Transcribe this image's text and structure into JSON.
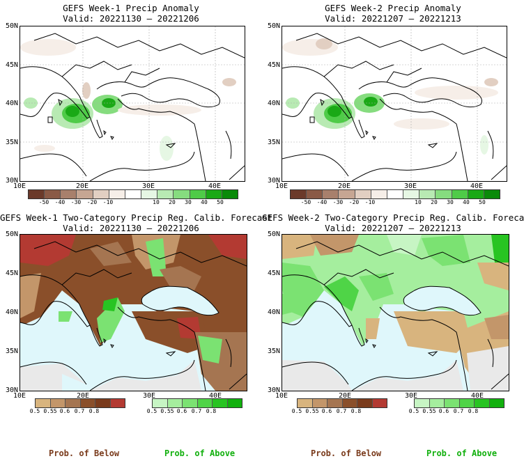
{
  "panels": [
    {
      "title": "GEFS Week-1 Precip Anomaly",
      "valid": "Valid: 20221130 – 20221206"
    },
    {
      "title": "GEFS Week-2 Precip Anomaly",
      "valid": "Valid: 20221207 – 20221213"
    },
    {
      "title": "GEFS Week-1 Two-Category Precip Reg. Calib. Forecast",
      "valid": "Valid: 20221130 – 20221206"
    },
    {
      "title": "GEFS Week-2 Two-Category Precip Reg. Calib. Forecast",
      "valid": "Valid: 20221207 – 20221213"
    }
  ],
  "axes": {
    "lat_labels": [
      "50N",
      "45N",
      "40N",
      "35N",
      "30N"
    ],
    "lon_labels": [
      "10E",
      "20E",
      "30E",
      "40E"
    ]
  },
  "anomaly_colorbar": {
    "ticks": [
      "-50",
      "-40",
      "-30",
      "-20",
      "-10",
      "10",
      "20",
      "30",
      "40",
      "50"
    ],
    "colors": [
      "#6b3a2a",
      "#8a5a46",
      "#a8806c",
      "#c6a693",
      "#e2cfc2",
      "#f6eee8",
      "#ffffff",
      "#e6f7e4",
      "#b8eab3",
      "#86dc7f",
      "#4fcb48",
      "#1aa916",
      "#0a8a0a"
    ]
  },
  "prob_below_colorbar": {
    "ticks": [
      "0.5",
      "0.55",
      "0.6",
      "0.7",
      "0.8"
    ],
    "colors": [
      "#d8b47e",
      "#c3966a",
      "#a57551",
      "#8a4f2a",
      "#7a3b1c",
      "#b33a32"
    ],
    "label": "Prob. of Below"
  },
  "prob_above_colorbar": {
    "ticks": [
      "0.5",
      "0.55",
      "0.6",
      "0.7",
      "0.8"
    ],
    "colors": [
      "#c7f5c4",
      "#a5ee9e",
      "#7be272",
      "#4fd447",
      "#28c422",
      "#12b00e"
    ],
    "label": "Prob. of Above"
  },
  "colors": {
    "sea": "#dff7fb",
    "neutral_land": "#e9e9e9",
    "below_prob": "#8a4f2a",
    "above_prob": "#7be272"
  }
}
